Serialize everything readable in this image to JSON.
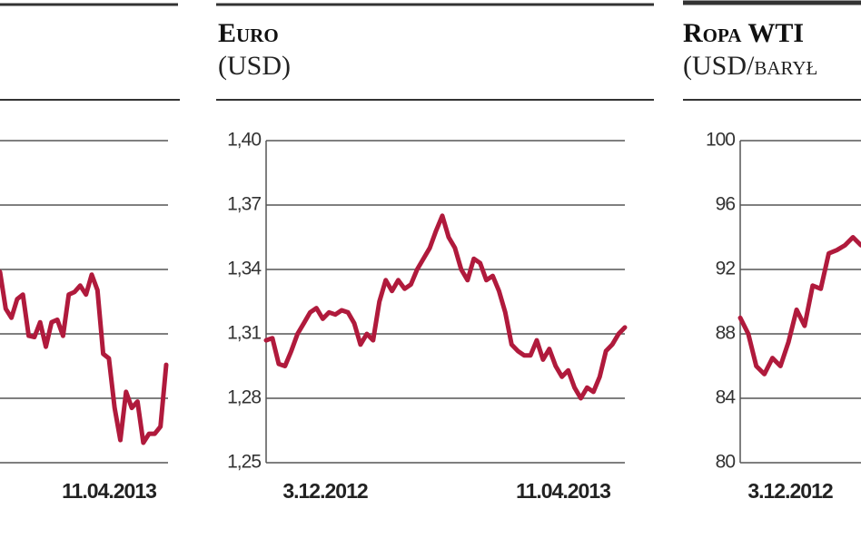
{
  "chart_data": [
    {
      "type": "line",
      "color": "#b01a3c",
      "ylim": [
        0,
        5
      ],
      "grid": true,
      "x_labels": [
        "11.04.2013"
      ],
      "values": [
        2.96,
        2.39,
        2.25,
        2.54,
        2.61,
        1.97,
        1.95,
        2.18,
        1.8,
        2.18,
        2.22,
        1.97,
        2.61,
        2.65,
        2.75,
        2.61,
        2.92,
        2.68,
        1.69,
        1.62,
        0.85,
        0.35,
        1.1,
        0.85,
        0.95,
        0.31,
        0.45,
        0.45,
        0.56,
        1.52
      ]
    },
    {
      "type": "line",
      "title": "Euro",
      "subtitle": "(USD)",
      "color": "#b01a3c",
      "grid": true,
      "ylim": [
        1.25,
        1.4
      ],
      "yticks": [
        {
          "value": 1.25,
          "label": "1,25"
        },
        {
          "value": 1.28,
          "label": "1,28"
        },
        {
          "value": 1.31,
          "label": "1,31"
        },
        {
          "value": 1.34,
          "label": "1,34"
        },
        {
          "value": 1.37,
          "label": "1,37"
        },
        {
          "value": 1.4,
          "label": "1,40"
        }
      ],
      "x_labels": [
        "3.12.2012",
        "11.04.2013"
      ],
      "values": [
        1.307,
        1.308,
        1.296,
        1.295,
        1.302,
        1.31,
        1.315,
        1.32,
        1.322,
        1.317,
        1.32,
        1.319,
        1.321,
        1.32,
        1.315,
        1.305,
        1.31,
        1.307,
        1.325,
        1.335,
        1.33,
        1.335,
        1.331,
        1.333,
        1.34,
        1.345,
        1.35,
        1.358,
        1.365,
        1.355,
        1.35,
        1.34,
        1.335,
        1.345,
        1.343,
        1.335,
        1.337,
        1.33,
        1.32,
        1.305,
        1.302,
        1.3,
        1.3,
        1.307,
        1.298,
        1.303,
        1.295,
        1.29,
        1.293,
        1.285,
        1.28,
        1.285,
        1.283,
        1.29,
        1.302,
        1.305,
        1.31,
        1.313
      ]
    },
    {
      "type": "line",
      "title": "Ropa WTI",
      "subtitle": "(USD/barył",
      "color": "#b01a3c",
      "grid": true,
      "ylim": [
        80,
        100
      ],
      "yticks": [
        80,
        84,
        88,
        92,
        96,
        100
      ],
      "x_labels": [
        "3.12.2012"
      ],
      "values": [
        89,
        88,
        86,
        85.5,
        86.5,
        86,
        87.5,
        89.5,
        88.5,
        91,
        90.8,
        93,
        93.2,
        93.5,
        94,
        93.5
      ]
    }
  ]
}
